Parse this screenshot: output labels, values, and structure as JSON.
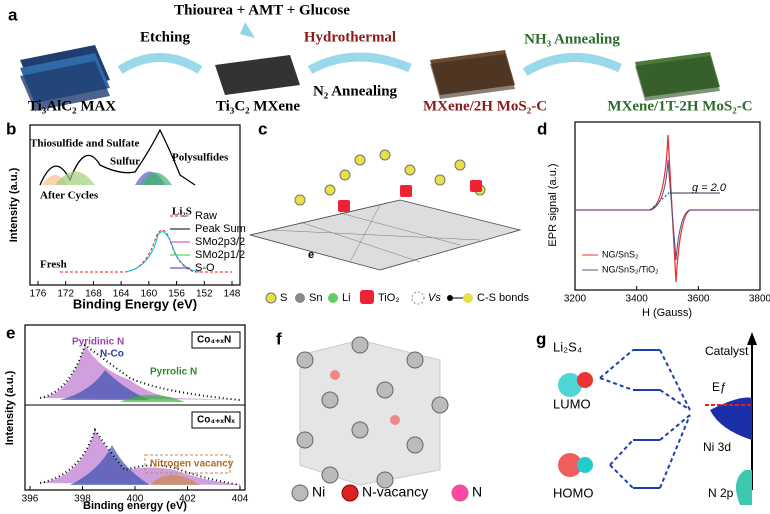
{
  "panels": {
    "a": {
      "label": "a",
      "reagents": "Thiourea + AMT + Glucose",
      "steps": [
        "Etching",
        "Hydrothermal",
        "N₂ Annealing",
        "NH₃ Annealing"
      ],
      "materials": [
        "Ti₃AlC₂ MAX",
        "Ti₃C₂ MXene",
        "MXene/2H MoS₂-C",
        "MXene/1T-2H MoS₂-C"
      ]
    },
    "b": {
      "label": "b",
      "x_label": "Binding Energy (eV)",
      "y_label": "Intensity (a.u.)",
      "xticks": [
        176,
        172,
        168,
        164,
        160,
        156,
        152,
        148
      ],
      "annotations": [
        "Thiosulfide and Sulfate",
        "Sulfur",
        "Polysulfides",
        "Li₂S",
        "After Cycles",
        "Fresh"
      ],
      "legend": [
        "Raw",
        "Peak Sum",
        "SMo2p3/2",
        "SMo2p1/2",
        "S-O"
      ]
    },
    "c": {
      "label": "c",
      "tag": "e",
      "legend": [
        "S",
        "Sn",
        "Li",
        "TiO₂",
        "Vs",
        "C-S bonds"
      ]
    },
    "d": {
      "label": "d",
      "x_label": "H (Gauss)",
      "y_label": "EPR signal (a.u.)",
      "xticks": [
        3200,
        3400,
        3600,
        3800
      ],
      "annotation": "g = 2.0",
      "legend": [
        "NG/SnS₂",
        "NG/SnS₂/TiO₂"
      ]
    },
    "e": {
      "label": "e",
      "x_label": "Binding energy (eV)",
      "y_label": "Intensity (a.u.)",
      "xticks": [
        396,
        398,
        400,
        402,
        404
      ],
      "annotations": [
        "Pyridinic N",
        "N-Co",
        "Pyrrolic N",
        "Nitrogen vacancy"
      ],
      "samples": [
        "Co₄₊ₓN",
        "Co₄₊ₓNₓ"
      ]
    },
    "f": {
      "label": "f",
      "legend": [
        "Ni",
        "N-vacancy",
        "N"
      ]
    },
    "g": {
      "label": "g",
      "texts": [
        "Li₂S₄",
        "LUMO",
        "HOMO",
        "Catalyst",
        "Eƒ",
        "Ni 3d",
        "N 2p"
      ]
    }
  }
}
